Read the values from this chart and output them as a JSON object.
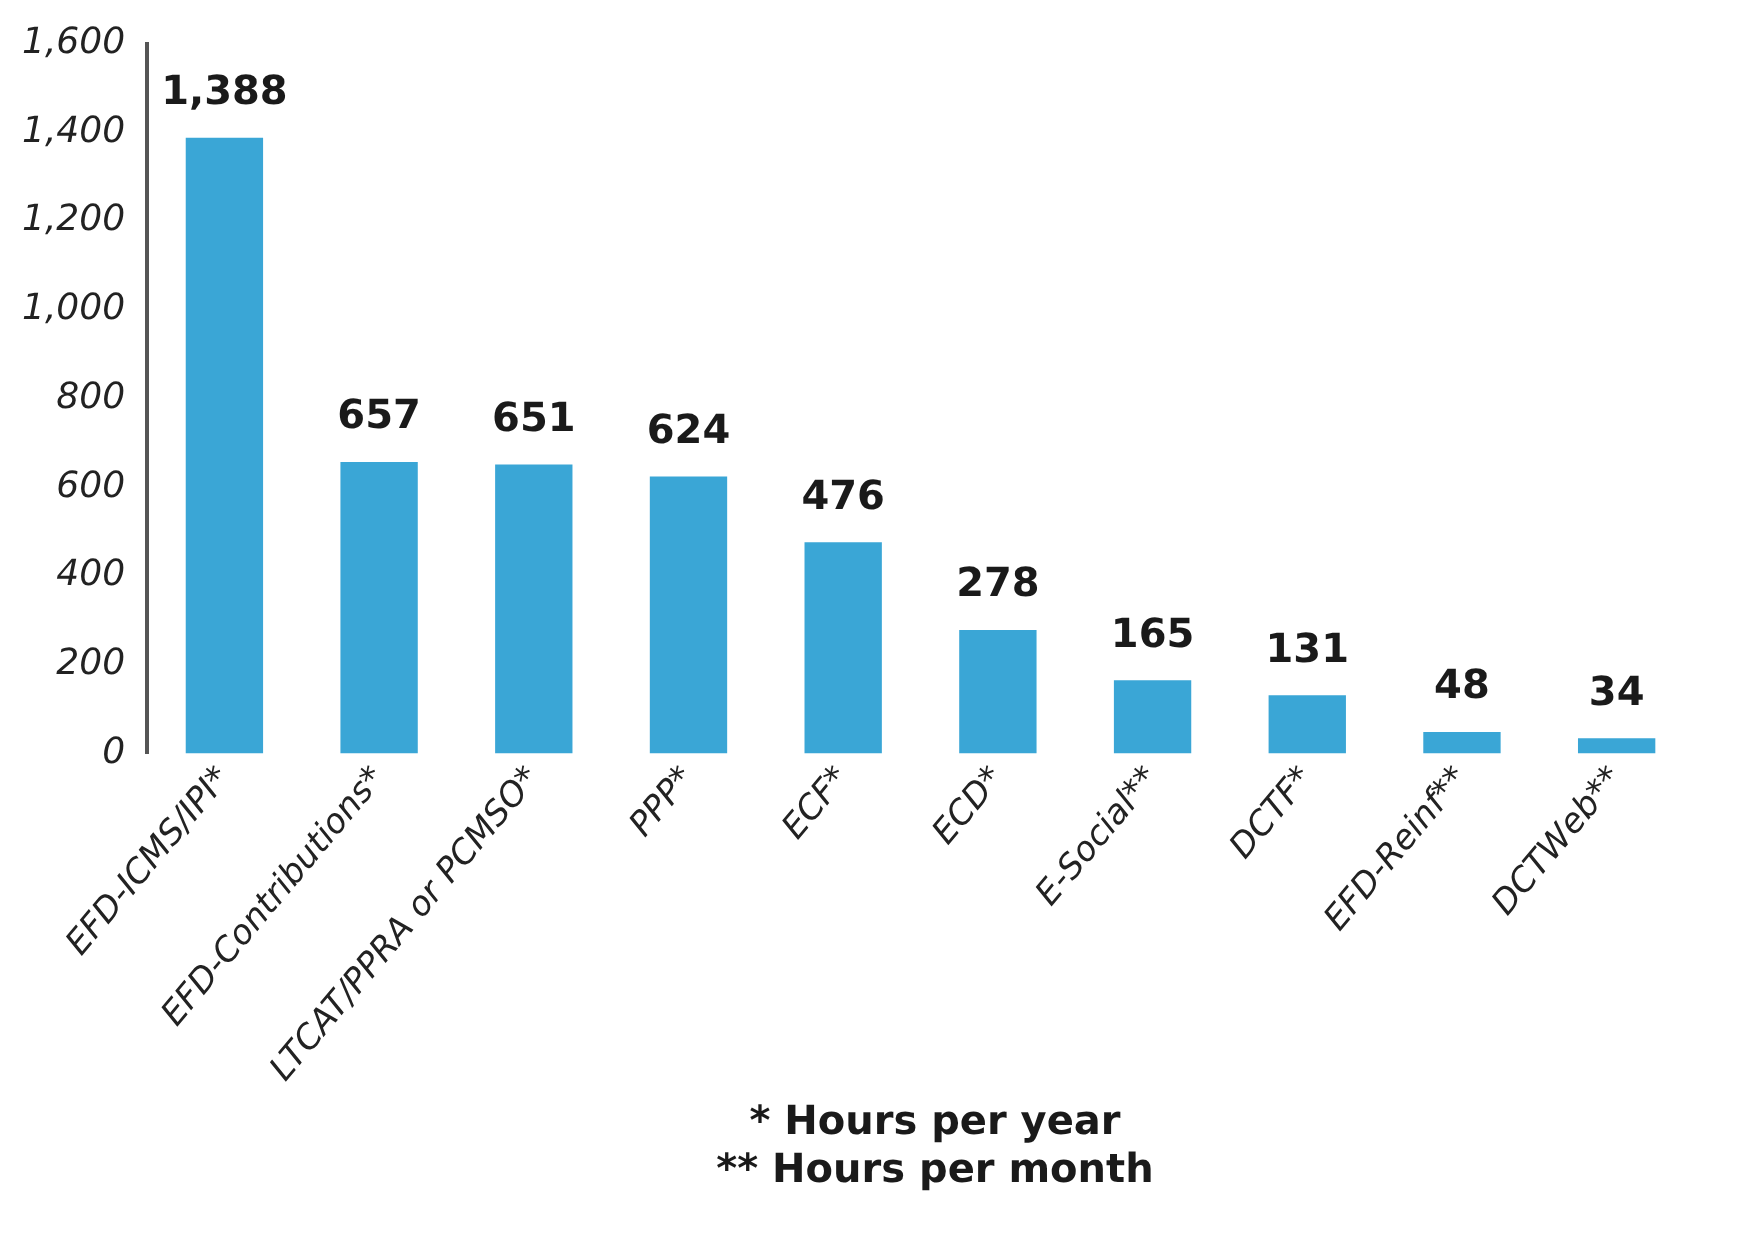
{
  "chart_data": {
    "type": "bar",
    "categories": [
      "EFD-ICMS/IPI*",
      "EFD-Contributions*",
      "LTCAT/PPRA or PCMSO*",
      "PPP*",
      "ECF*",
      "ECD*",
      "E-Social**",
      "DCTF*",
      "EFD-Reinf**",
      "DCTWeb**"
    ],
    "values": [
      1388,
      657,
      651,
      624,
      476,
      278,
      165,
      131,
      48,
      34
    ],
    "value_labels": [
      "1,388",
      "657",
      "651",
      "624",
      "476",
      "278",
      "165",
      "131",
      "48",
      "34"
    ],
    "color": "#3aa6d6",
    "ylim": [
      0,
      1600
    ],
    "yticks": [
      {
        "value": 0,
        "label": "0"
      },
      {
        "value": 200,
        "label": "200"
      },
      {
        "value": 400,
        "label": "400"
      },
      {
        "value": 600,
        "label": "600"
      },
      {
        "value": 800,
        "label": "800"
      },
      {
        "value": 1000,
        "label": "1,000"
      },
      {
        "value": 1200,
        "label": "1,200"
      },
      {
        "value": 1400,
        "label": "1,400"
      },
      {
        "value": 1600,
        "label": "1,600"
      }
    ],
    "annotations": [
      "* Hours per year",
      "** Hours per month"
    ]
  }
}
